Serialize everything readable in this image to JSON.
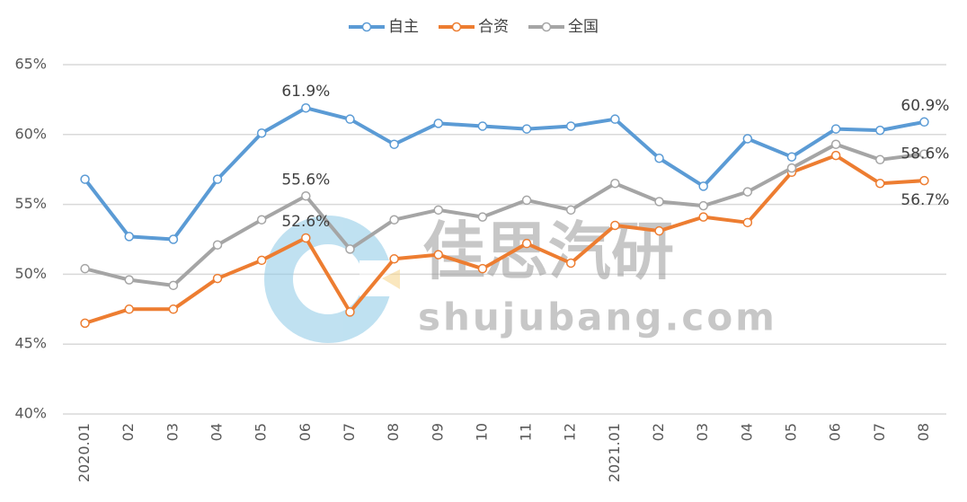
{
  "chart_data": {
    "type": "line",
    "categories": [
      "2020.01",
      "02",
      "03",
      "04",
      "05",
      "06",
      "07",
      "08",
      "09",
      "10",
      "11",
      "12",
      "2021.01",
      "02",
      "03",
      "04",
      "05",
      "06",
      "07",
      "08"
    ],
    "series": [
      {
        "name": "自主",
        "color": "#5b9bd5",
        "values": [
          56.8,
          52.7,
          52.5,
          56.8,
          60.1,
          61.9,
          61.1,
          59.3,
          60.8,
          60.6,
          60.4,
          60.6,
          61.1,
          58.3,
          56.3,
          59.7,
          58.4,
          60.4,
          60.3,
          60.9
        ],
        "value_labels": [
          null,
          null,
          null,
          null,
          null,
          "61.9%",
          null,
          null,
          null,
          null,
          null,
          null,
          null,
          null,
          null,
          null,
          null,
          null,
          null,
          "60.9%"
        ]
      },
      {
        "name": "合资",
        "color": "#ed7d31",
        "values": [
          46.5,
          47.5,
          47.5,
          49.7,
          51.0,
          52.6,
          47.3,
          51.1,
          51.4,
          50.4,
          52.2,
          50.8,
          53.5,
          53.1,
          54.1,
          53.7,
          57.3,
          58.5,
          56.5,
          56.7
        ],
        "value_labels": [
          null,
          null,
          null,
          null,
          null,
          "52.6%",
          null,
          null,
          null,
          null,
          null,
          null,
          null,
          null,
          null,
          null,
          null,
          null,
          null,
          "56.7%"
        ]
      },
      {
        "name": "全国",
        "color": "#a5a5a5",
        "values": [
          50.4,
          49.6,
          49.2,
          52.1,
          53.9,
          55.6,
          51.8,
          53.9,
          54.6,
          54.1,
          55.3,
          54.6,
          56.5,
          55.2,
          54.9,
          55.9,
          57.6,
          59.3,
          58.2,
          58.6
        ],
        "value_labels": [
          null,
          null,
          null,
          null,
          null,
          "55.6%",
          null,
          null,
          null,
          null,
          null,
          null,
          null,
          null,
          null,
          null,
          null,
          null,
          null,
          "58.6%"
        ]
      }
    ],
    "ylim": [
      40,
      65
    ],
    "yticks": [
      {
        "value": 40,
        "label": "40%"
      },
      {
        "value": 45,
        "label": "45%"
      },
      {
        "value": 50,
        "label": "50%"
      },
      {
        "value": 55,
        "label": "55%"
      },
      {
        "value": 60,
        "label": "60%"
      },
      {
        "value": 65,
        "label": "65%"
      }
    ],
    "grid": true,
    "legend": "top",
    "watermark": {
      "name": "佳思汽研",
      "url": "shujubang.com"
    }
  }
}
